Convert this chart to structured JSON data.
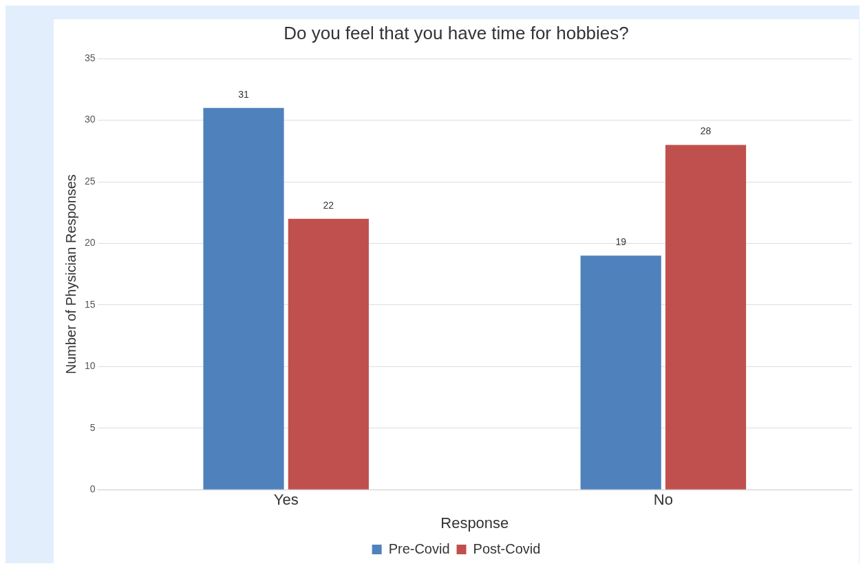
{
  "chart_data": {
    "type": "bar",
    "title": "Do you feel that you have time for hobbies?",
    "xlabel": "Response",
    "ylabel": "Number of Physician Responses",
    "categories": [
      "Yes",
      "No"
    ],
    "series": [
      {
        "name": "Pre-Covid",
        "color": "#4f81bd",
        "values": [
          31,
          19
        ]
      },
      {
        "name": "Post-Covid",
        "color": "#c0504d",
        "values": [
          22,
          28
        ]
      }
    ],
    "ylim": [
      0,
      35
    ],
    "yticks": [
      0,
      5,
      10,
      15,
      20,
      25,
      30,
      35
    ],
    "grid": "y",
    "legend": "bottom",
    "data_labels": true
  }
}
